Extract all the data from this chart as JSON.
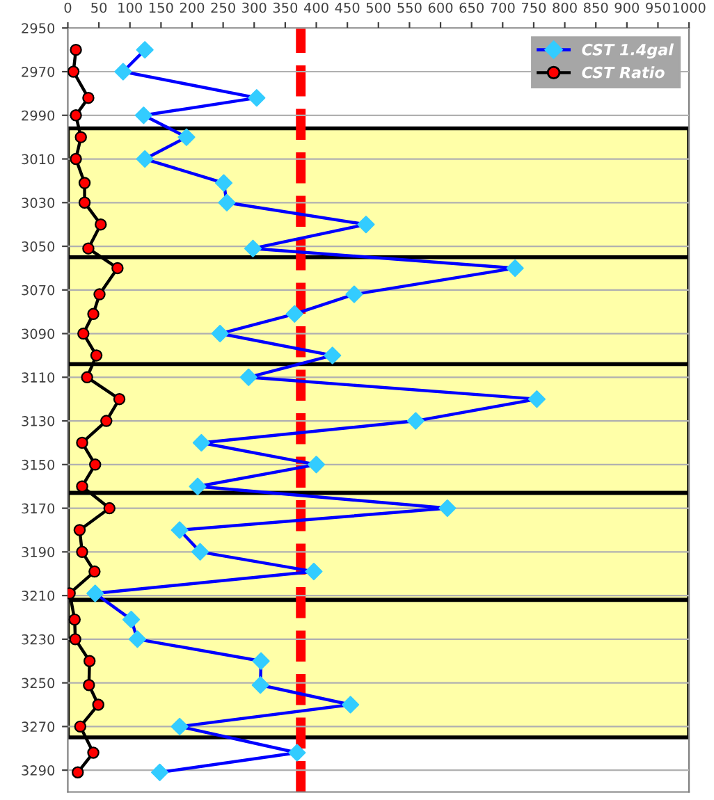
{
  "chart_data": {
    "type": "line",
    "xlim": [
      0,
      1000
    ],
    "xticks": [
      0,
      50,
      100,
      150,
      200,
      250,
      300,
      350,
      400,
      450,
      500,
      550,
      600,
      650,
      700,
      750,
      800,
      850,
      900,
      950,
      1000
    ],
    "ylim": [
      3300,
      2950
    ],
    "yticks": [
      2950,
      2970,
      2990,
      3010,
      3030,
      3050,
      3070,
      3090,
      3110,
      3130,
      3150,
      3170,
      3190,
      3210,
      3230,
      3250,
      3270,
      3290
    ],
    "grid": "y",
    "legend": "top right",
    "series": [
      {
        "name": "CST 1.4gal",
        "color": "#0000ff",
        "colors": [
          "#33ccff",
          "#33ccff",
          "#33ccff",
          "#33ccff",
          "#33ccff",
          "#33ccff",
          "#33ccff",
          "#33ccff",
          "#33ccff",
          "#33ccff",
          "#33ccff",
          "#33ccff",
          "#33ccff",
          "#33ccff",
          "#33ccff",
          "#33ccff",
          "#33ccff",
          "#33ccff",
          "#33ccff",
          "#33ccff",
          "#33ccff",
          "#33ccff",
          "#33ccff",
          "#33ccff",
          "#33ccff",
          "#33ccff",
          "#33ccff",
          "#33ccff",
          "#33ccff",
          "#33ccff",
          "#33ccff",
          "#33ccff",
          "#33ccff",
          "#33ccff"
        ],
        "marker": "diamond",
        "x": [
          124,
          89,
          304,
          122,
          191,
          124,
          251,
          256,
          480,
          298,
          720,
          461,
          365,
          245,
          426,
          291,
          755,
          560,
          215,
          400,
          209,
          611,
          180,
          213,
          396,
          44,
          102,
          112,
          311,
          310,
          455,
          180,
          369,
          148
        ],
        "values": [
          2960,
          2970,
          2982,
          2990,
          3000,
          3010,
          3021,
          3030,
          3040,
          3051,
          3060,
          3072,
          3081,
          3090,
          3100,
          3110,
          3120,
          3130,
          3140,
          3150,
          3160,
          3170,
          3180,
          3190,
          3199,
          3209,
          3221,
          3230,
          3240,
          3251,
          3260,
          3270,
          3282,
          3291
        ]
      },
      {
        "name": "CST Ratio",
        "color": "#000000",
        "colors": [
          "#ff0000",
          "#ff0000",
          "#ff0000",
          "#ff0000",
          "#ff0000",
          "#ff0000",
          "#ff0000",
          "#ff0000",
          "#ff0000",
          "#ff0000",
          "#ff0000",
          "#ff0000",
          "#ff0000",
          "#ff0000",
          "#ff0000",
          "#ff0000",
          "#ff0000",
          "#ff0000",
          "#ff0000",
          "#ff0000",
          "#ff0000",
          "#ff0000",
          "#ff0000",
          "#ff0000",
          "#ff0000",
          "#ff0000",
          "#ff0000",
          "#ff0000",
          "#ff0000",
          "#ff0000",
          "#ff0000",
          "#ff0000",
          "#ff0000",
          "#ff0000"
        ],
        "marker": "circle",
        "x": [
          13,
          9,
          33,
          13,
          21,
          13,
          27,
          27,
          53,
          33,
          80,
          51,
          41,
          25,
          46,
          31,
          83,
          62,
          23,
          44,
          23,
          67,
          19,
          23,
          43,
          3,
          11,
          12,
          35,
          34,
          49,
          20,
          41,
          16
        ],
        "values": [
          2960,
          2970,
          2982,
          2990,
          3000,
          3010,
          3021,
          3030,
          3040,
          3051,
          3060,
          3072,
          3081,
          3090,
          3100,
          3110,
          3120,
          3130,
          3140,
          3150,
          3160,
          3170,
          3180,
          3190,
          3199,
          3209,
          3221,
          3230,
          3240,
          3251,
          3260,
          3270,
          3282,
          3291
        ]
      }
    ],
    "ref_lines": [
      {
        "axis": "x",
        "value": 375,
        "color": "#ff0000",
        "line_style": "dashed"
      }
    ],
    "bands": [
      {
        "axis": "y",
        "from": 2996,
        "to": 3055,
        "color": "#ffffa8"
      },
      {
        "axis": "y",
        "from": 3055,
        "to": 3104,
        "color": "#ffffa8"
      },
      {
        "axis": "y",
        "from": 3104,
        "to": 3163,
        "color": "#ffffa8"
      },
      {
        "axis": "y",
        "from": 3163,
        "to": 3212,
        "color": "#ffffa8"
      },
      {
        "axis": "y",
        "from": 3212,
        "to": 3275,
        "color": "#ffffa8"
      }
    ]
  }
}
